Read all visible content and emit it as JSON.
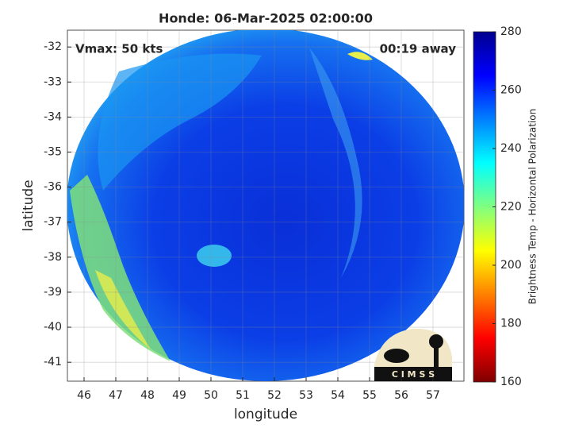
{
  "chart_data": {
    "type": "image",
    "title": "Honde: 06-Mar-2025 02:00:00",
    "x_label": "longitude",
    "y_label": "latitude",
    "xlim": [
      45.475,
      57.975
    ],
    "xticks": [
      46,
      47,
      48,
      49,
      50,
      51,
      52,
      53,
      54,
      55,
      56,
      57
    ],
    "ylim": [
      -41.54,
      -31.52
    ],
    "yticks": [
      -32,
      -33,
      -34,
      -35,
      -36,
      -37,
      -38,
      -39,
      -40,
      -41
    ],
    "grid": true,
    "annotations": [
      "Vmax: 50 kts",
      "00:19 away"
    ],
    "colorbar": {
      "label": "Brightness Temp - Horizontal Polarization",
      "lim": [
        160,
        280
      ],
      "ticks": [
        160,
        180,
        200,
        220,
        240,
        260,
        280
      ],
      "colormap": [
        "#7f0000",
        "#ff0000",
        "#ff8000",
        "#ffff00",
        "#80ff80",
        "#00ffff",
        "#0080ff",
        "#0000ff",
        "#00008f"
      ]
    },
    "logo_text": "C I M S S"
  }
}
